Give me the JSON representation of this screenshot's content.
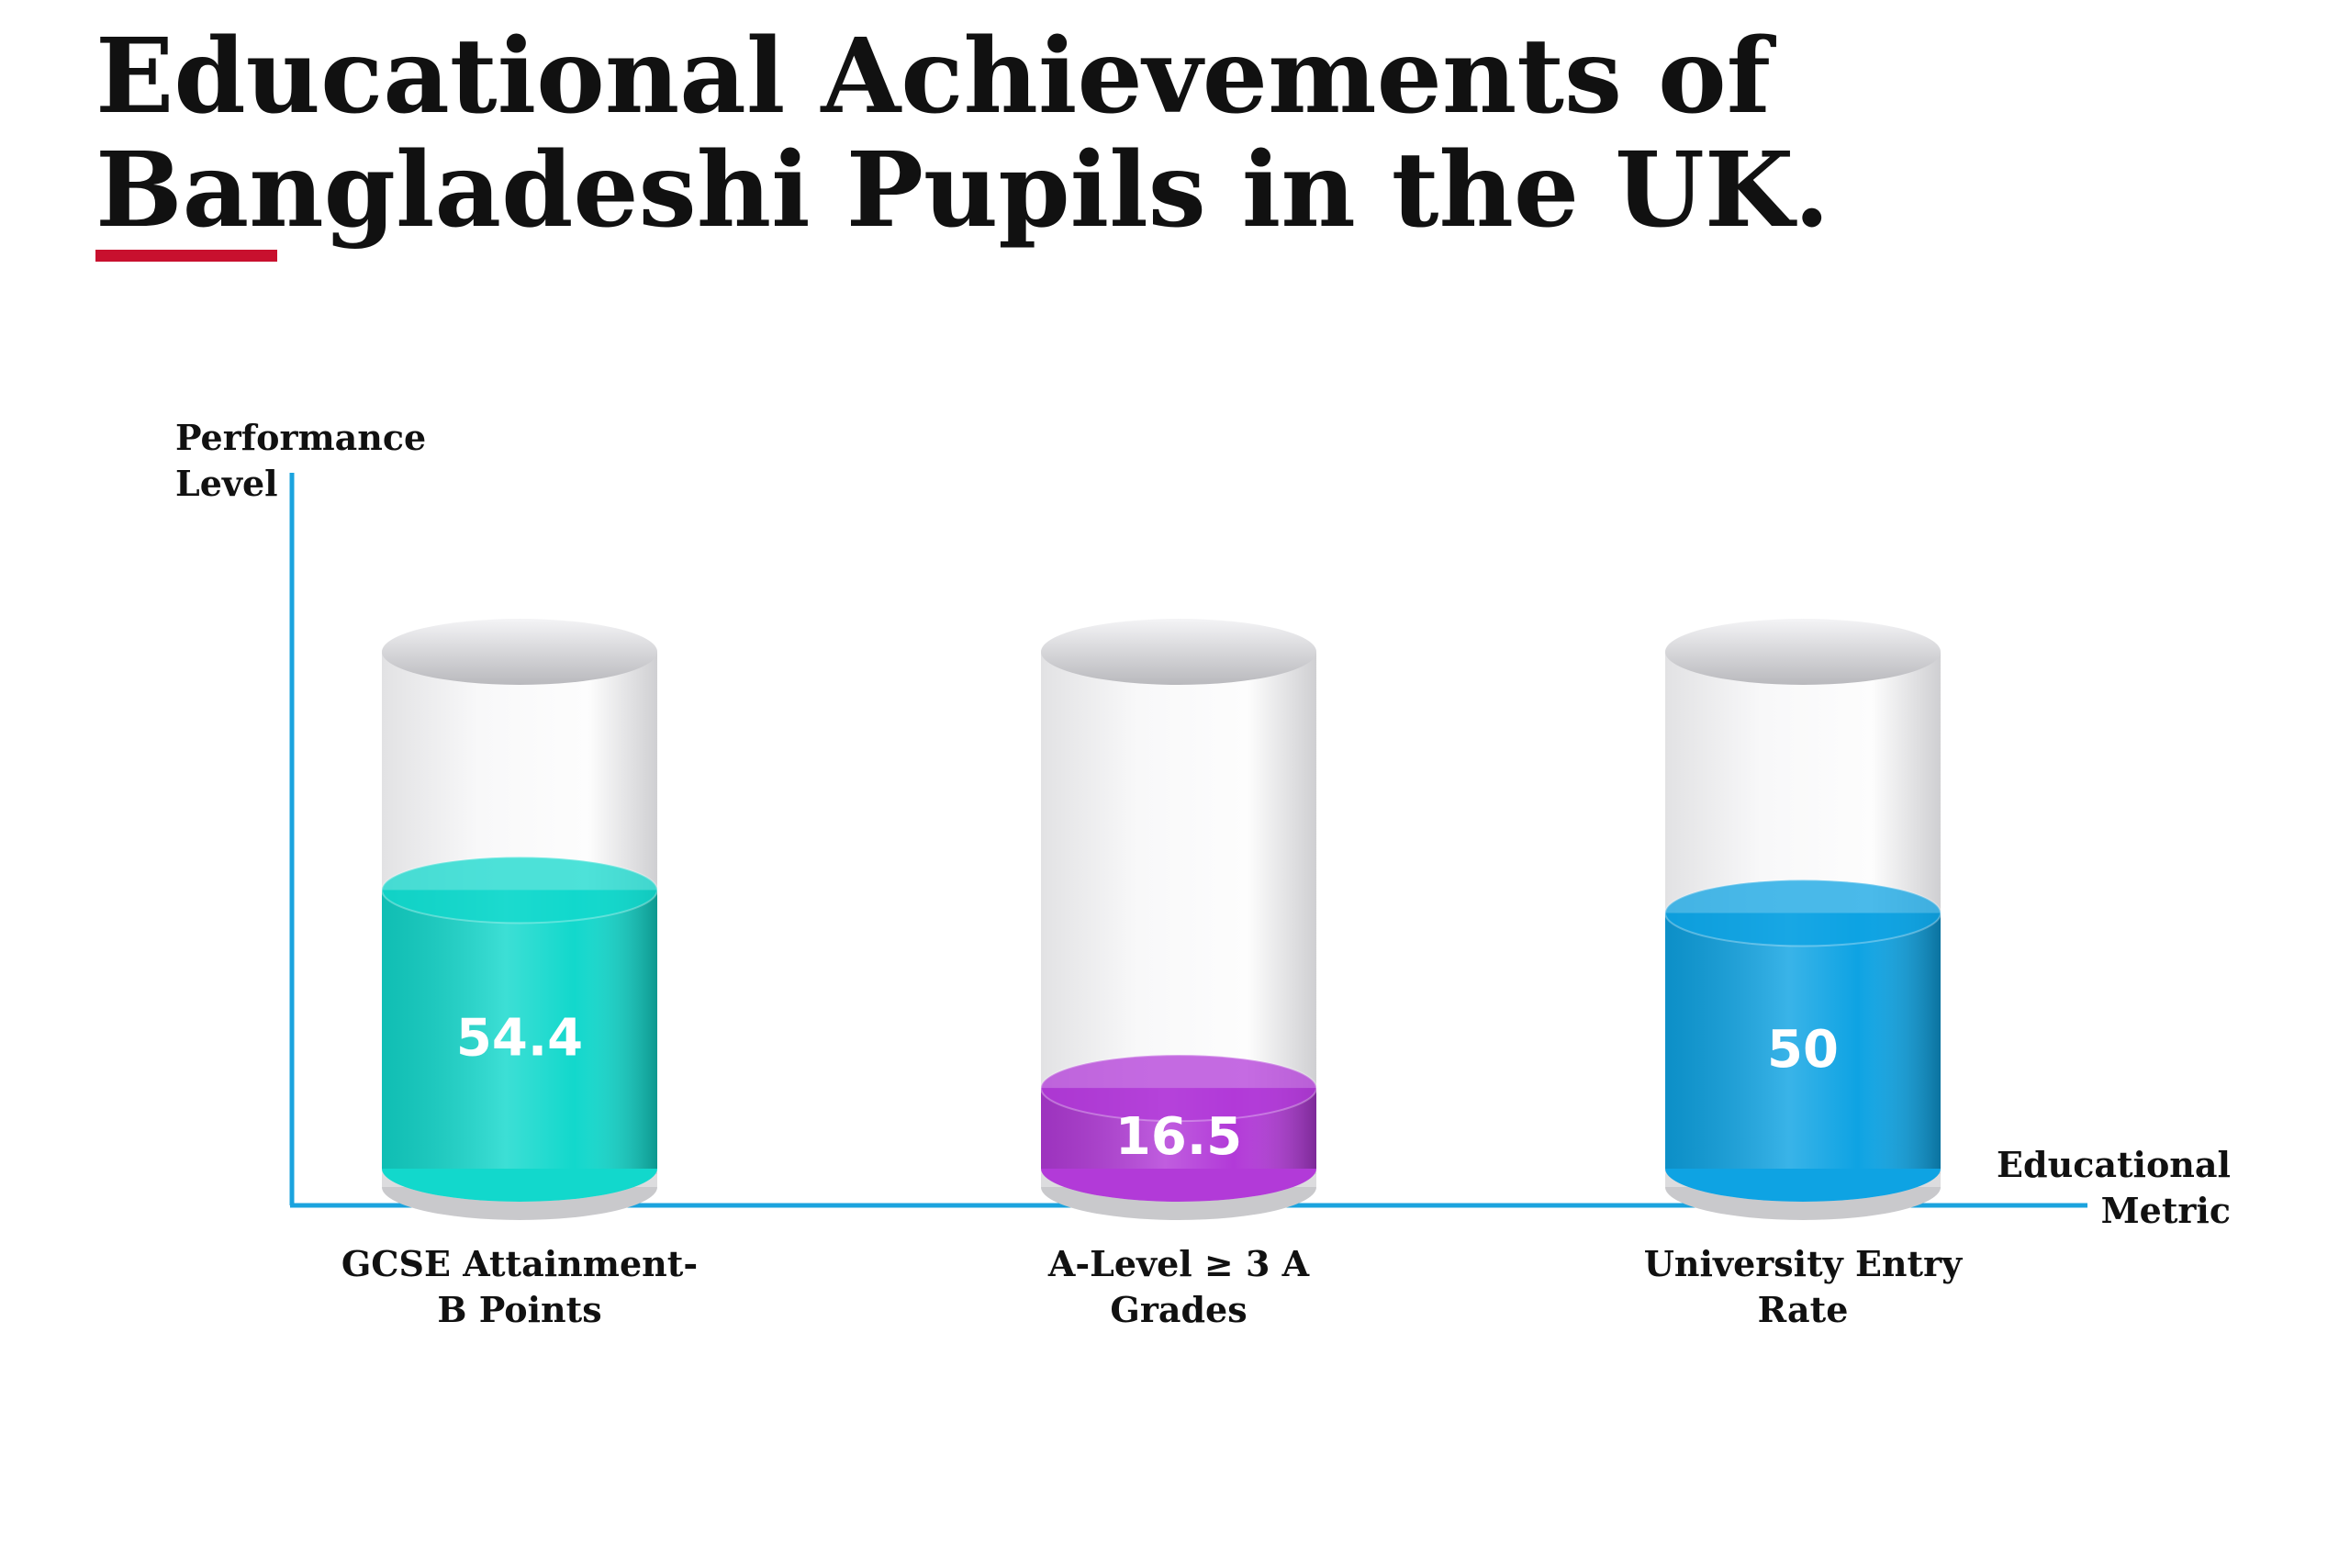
{
  "chart_data": {
    "type": "bar",
    "title": "Educational Achievements of Bangladeshi Pupils in the UK.",
    "y_label": "Performance Level",
    "x_label": "Educational Metric",
    "categories": [
      "GCSE Attainment-B Points",
      "A-Level ≥ 3 A Grades",
      "University Entry Rate"
    ],
    "values": [
      54.4,
      16.5,
      50
    ],
    "colors": [
      "#12d8cc",
      "#b23ad8",
      "#0ea3e3"
    ],
    "ylim": [
      0,
      100
    ]
  }
}
